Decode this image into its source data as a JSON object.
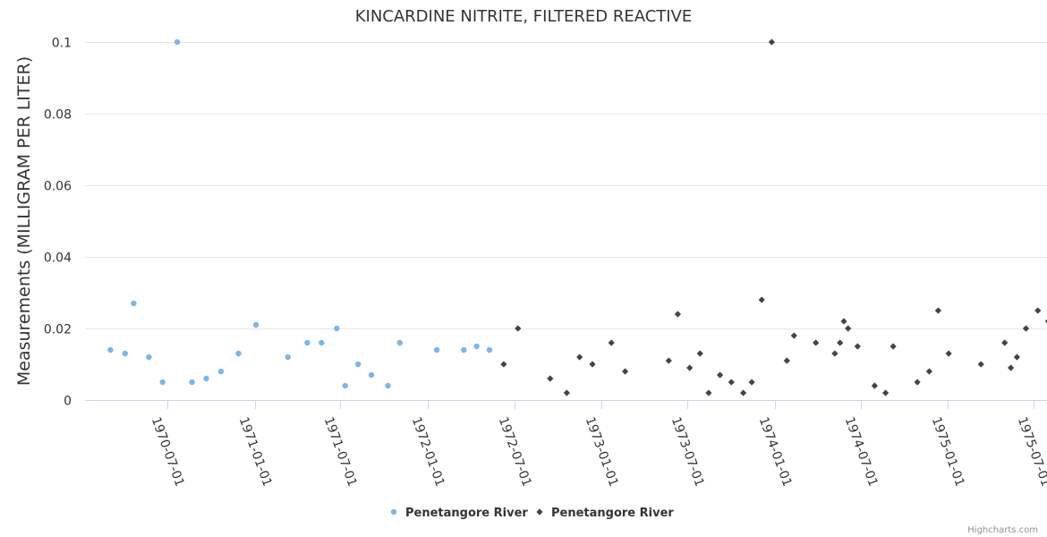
{
  "chart_data": {
    "type": "scatter",
    "title": "KINCARDINE NITRITE, FILTERED REACTIVE",
    "ylabel": "Measurements (MILLIGRAM PER LITER)",
    "xlabel": "",
    "ylim": [
      0,
      0.1
    ],
    "y_ticks": [
      "0",
      "0.02",
      "0.04",
      "0.06",
      "0.08",
      "0.1"
    ],
    "x_ticks": [
      "1970-07-01",
      "1971-01-01",
      "1971-07-01",
      "1972-01-01",
      "1972-07-01",
      "1973-01-01",
      "1973-07-01",
      "1974-01-01",
      "1974-07-01",
      "1975-01-01",
      "1975-07-01"
    ],
    "grid": true,
    "legend_position": "bottom-center",
    "credits": "Highcharts.com",
    "series": [
      {
        "name": "Penetangore River",
        "color": "#7cb5ec",
        "marker": "circle",
        "points": [
          [
            "1970-03-03",
            0.014
          ],
          [
            "1970-04-03",
            0.013
          ],
          [
            "1970-04-21",
            0.027
          ],
          [
            "1970-05-23",
            0.012
          ],
          [
            "1970-06-21",
            0.005
          ],
          [
            "1970-07-22",
            0.1
          ],
          [
            "1970-08-22",
            0.005
          ],
          [
            "1970-09-21",
            0.006
          ],
          [
            "1970-10-22",
            0.008
          ],
          [
            "1970-11-28",
            0.013
          ],
          [
            "1971-01-04",
            0.021
          ],
          [
            "1971-03-12",
            0.012
          ],
          [
            "1971-04-22",
            0.016
          ],
          [
            "1971-05-22",
            0.016
          ],
          [
            "1971-06-23",
            0.02
          ],
          [
            "1971-07-11",
            0.004
          ],
          [
            "1971-08-07",
            0.01
          ],
          [
            "1971-09-04",
            0.007
          ],
          [
            "1971-10-09",
            0.004
          ],
          [
            "1971-11-03",
            0.016
          ],
          [
            "1972-01-20",
            0.014
          ],
          [
            "1972-03-17",
            0.014
          ],
          [
            "1972-04-13",
            0.015
          ],
          [
            "1972-05-10",
            0.014
          ]
        ]
      },
      {
        "name": "Penetangore River",
        "color": "#434348",
        "marker": "diamond",
        "points": [
          [
            "1972-06-09",
            0.01
          ],
          [
            "1972-07-09",
            0.02
          ],
          [
            "1972-09-15",
            0.006
          ],
          [
            "1972-10-20",
            0.002
          ],
          [
            "1972-11-16",
            0.012
          ],
          [
            "1972-12-13",
            0.01
          ],
          [
            "1973-01-22",
            0.016
          ],
          [
            "1973-02-20",
            0.008
          ],
          [
            "1973-05-23",
            0.011
          ],
          [
            "1973-06-11",
            0.024
          ],
          [
            "1973-07-06",
            0.009
          ],
          [
            "1973-07-28",
            0.013
          ],
          [
            "1973-08-15",
            0.002
          ],
          [
            "1973-09-08",
            0.007
          ],
          [
            "1973-10-02",
            0.005
          ],
          [
            "1973-10-27",
            0.002
          ],
          [
            "1973-11-14",
            0.005
          ],
          [
            "1973-12-05",
            0.028
          ],
          [
            "1973-12-26",
            0.1
          ],
          [
            "1974-01-27",
            0.011
          ],
          [
            "1974-02-11",
            0.018
          ],
          [
            "1974-03-29",
            0.016
          ],
          [
            "1974-05-08",
            0.013
          ],
          [
            "1974-05-19",
            0.016
          ],
          [
            "1974-05-27",
            0.022
          ],
          [
            "1974-06-05",
            0.02
          ],
          [
            "1974-06-25",
            0.015
          ],
          [
            "1974-07-31",
            0.004
          ],
          [
            "1974-08-23",
            0.002
          ],
          [
            "1974-09-08",
            0.015
          ],
          [
            "1974-10-29",
            0.005
          ],
          [
            "1974-11-23",
            0.008
          ],
          [
            "1974-12-12",
            0.025
          ],
          [
            "1975-01-03",
            0.013
          ],
          [
            "1975-03-12",
            0.01
          ],
          [
            "1975-05-01",
            0.016
          ],
          [
            "1975-05-14",
            0.009
          ],
          [
            "1975-05-27",
            0.012
          ],
          [
            "1975-06-15",
            0.02
          ],
          [
            "1975-07-10",
            0.025
          ],
          [
            "1975-08-01",
            0.022
          ]
        ]
      }
    ]
  }
}
